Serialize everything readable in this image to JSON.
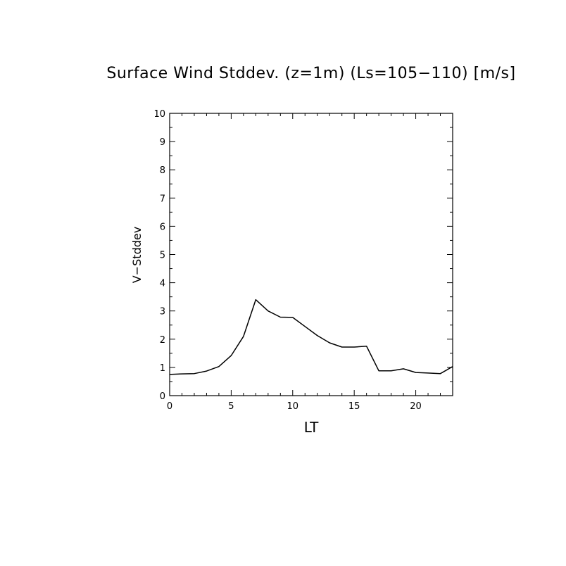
{
  "chart_data": {
    "type": "line",
    "title": "Surface Wind Stddev. (z=1m) (Ls=105−110) [m/s]",
    "xlabel": "LT",
    "ylabel": "V−Stddev",
    "xlim": [
      0,
      23
    ],
    "ylim": [
      0,
      10
    ],
    "x_ticks": [
      0,
      5,
      10,
      15,
      20
    ],
    "y_ticks": [
      0,
      1,
      2,
      3,
      4,
      5,
      6,
      7,
      8,
      9,
      10
    ],
    "grid": false,
    "line_color": "#000000",
    "series": [
      {
        "x": [
          0,
          1,
          2,
          3,
          4,
          5,
          6,
          7,
          8,
          9,
          10,
          11,
          12,
          13,
          14,
          15,
          16,
          17,
          18,
          19,
          20,
          21,
          22,
          23
        ],
        "values": [
          0.75,
          0.77,
          0.78,
          0.87,
          1.03,
          1.42,
          2.1,
          3.4,
          3.0,
          2.78,
          2.77,
          2.45,
          2.13,
          1.87,
          1.72,
          1.72,
          1.75,
          0.88,
          0.88,
          0.95,
          0.82,
          0.8,
          0.78,
          1.03
        ]
      }
    ]
  }
}
